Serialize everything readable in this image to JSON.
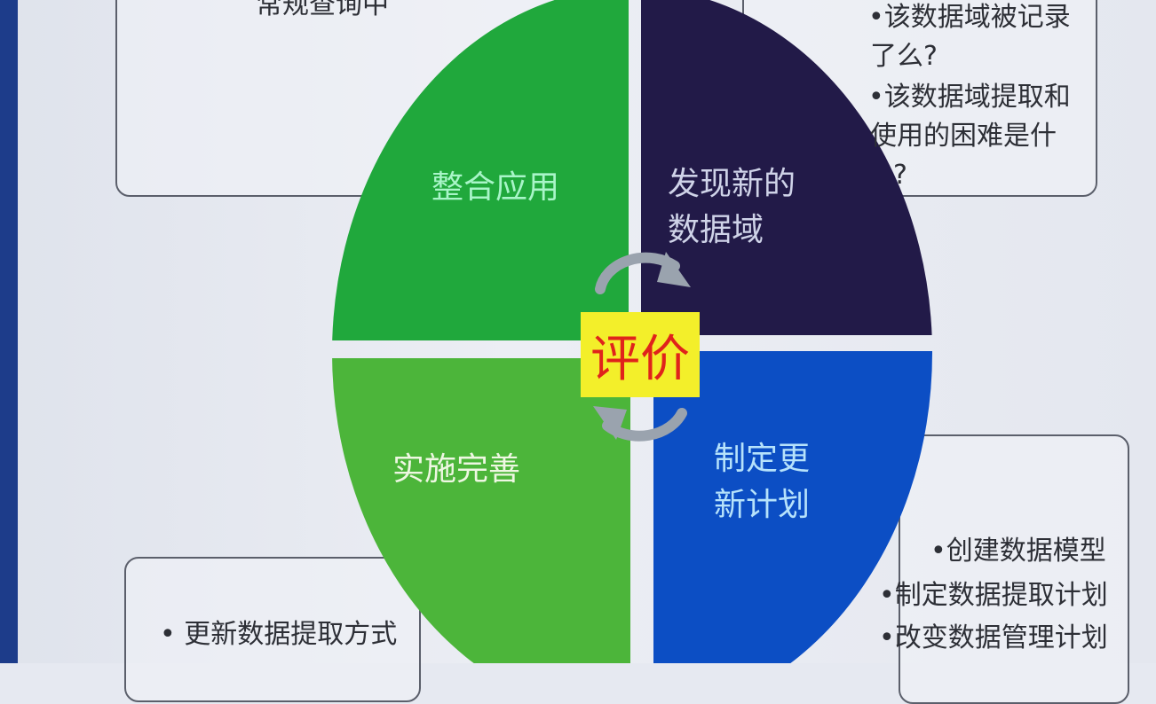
{
  "callouts": {
    "top_left": {
      "text": "常规查询中"
    },
    "top_right": {
      "lines": [
        "•该数据域被记录",
        "了么?",
        "•该数据域提取和",
        "使用的困难是什",
        "?"
      ]
    },
    "bottom_right": {
      "lines": [
        "•创建数据模型",
        "•制定数据提取计划",
        "•改变数据管理计划"
      ]
    },
    "bottom_left": {
      "text": "• 更新数据提取方式"
    }
  },
  "cycle": {
    "center": "评价",
    "quadrants": {
      "top_left": {
        "lines": [
          "整合应用"
        ],
        "color": "#20a83c"
      },
      "top_right": {
        "lines": [
          "发现新的",
          "数据域"
        ],
        "color": "#221a48"
      },
      "bottom_left": {
        "lines": [
          "实施完善"
        ],
        "color": "#4cb53a"
      },
      "bottom_right": {
        "lines": [
          "制定更",
          "新计划"
        ],
        "color": "#0c4ec4"
      }
    },
    "center_color": "#f3ef2a",
    "arrow_color": "#9aa3ae"
  }
}
